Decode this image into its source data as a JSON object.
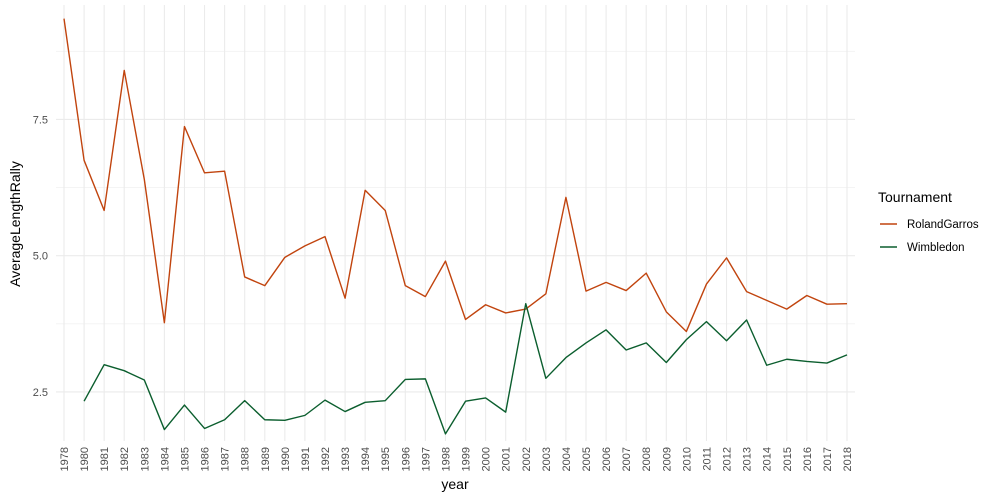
{
  "chart_data": {
    "type": "line",
    "xlabel": "year",
    "ylabel": "AverageLengthRally",
    "x": [
      1978,
      1980,
      1981,
      1982,
      1983,
      1984,
      1985,
      1986,
      1987,
      1988,
      1989,
      1990,
      1991,
      1992,
      1993,
      1994,
      1995,
      1996,
      1997,
      1998,
      1999,
      2000,
      2001,
      2002,
      2003,
      2004,
      2005,
      2006,
      2007,
      2008,
      2009,
      2010,
      2011,
      2012,
      2013,
      2014,
      2015,
      2016,
      2017,
      2018
    ],
    "yticks": [
      2.5,
      5.0,
      7.5
    ],
    "ytick_labels": [
      "2.5",
      "5.0",
      "7.5"
    ],
    "ylim": [
      1.6,
      9.6
    ],
    "grid": true,
    "legend": {
      "title": "Tournament",
      "position": "right"
    },
    "series": [
      {
        "name": "RolandGarros",
        "color": "#c1440e",
        "values": [
          9.35,
          6.75,
          5.83,
          8.4,
          6.4,
          3.77,
          7.37,
          6.52,
          6.55,
          4.61,
          4.45,
          4.97,
          5.18,
          5.35,
          4.22,
          6.2,
          5.83,
          4.45,
          4.25,
          4.9,
          3.83,
          4.1,
          3.95,
          4.02,
          4.3,
          6.07,
          4.35,
          4.51,
          4.36,
          4.68,
          3.97,
          3.61,
          4.48,
          4.96,
          4.34,
          4.18,
          4.02,
          4.27,
          4.11,
          4.12
        ]
      },
      {
        "name": "Wimbledon",
        "color": "#0b5e2e",
        "values": [
          null,
          2.33,
          3.0,
          2.89,
          2.72,
          1.81,
          2.26,
          1.83,
          1.99,
          2.34,
          1.99,
          1.98,
          2.07,
          2.35,
          2.14,
          2.31,
          2.34,
          2.73,
          2.74,
          1.73,
          2.33,
          2.39,
          2.13,
          4.12,
          2.75,
          3.13,
          3.4,
          3.64,
          3.27,
          3.4,
          3.04,
          3.46,
          3.79,
          3.44,
          3.82,
          2.99,
          3.1,
          3.06,
          3.03,
          3.18
        ]
      }
    ]
  }
}
